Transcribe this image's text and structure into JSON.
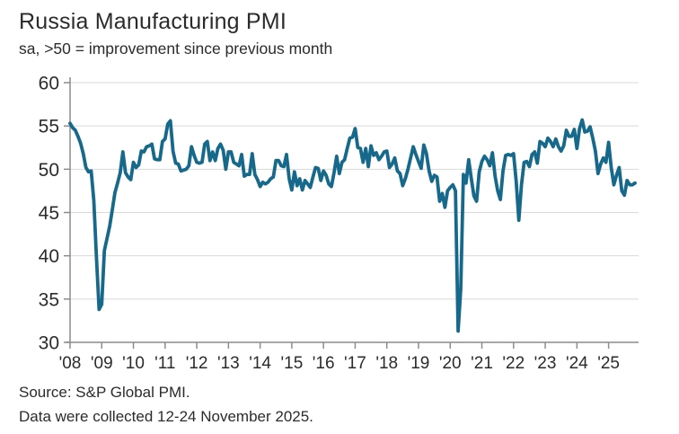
{
  "chart_data": {
    "type": "line",
    "title": "Russia Manufacturing PMI",
    "subtitle": "sa, >50 = improvement since previous month",
    "source": "Source: S&P Global PMI.",
    "note": "Data were collected 12-24 November 2025.",
    "frequency": "monthly",
    "x_start": "Jan 2008",
    "x_end": "Nov 2025",
    "ylim": [
      30,
      60
    ],
    "y_ticks": [
      30,
      35,
      40,
      45,
      50,
      55,
      60
    ],
    "x_tick_labels": [
      "'08",
      "'09",
      "'10",
      "'11",
      "'12",
      "'13",
      "'14",
      "'15",
      "'16",
      "'17",
      "'18",
      "'19",
      "'20",
      "'21",
      "'22",
      "'23",
      "'24",
      "'25"
    ],
    "grid": "horizontal",
    "legend": "none",
    "line_color": "#17698c",
    "grid_color": "#d9d9d9",
    "axis_color": "#8c8c8c",
    "text_color": "#2b2b2b",
    "series": [
      {
        "name": "Russia Manufacturing PMI (sa)",
        "values": [
          55.3,
          54.8,
          54.5,
          53.8,
          53.0,
          51.8,
          50.2,
          49.7,
          49.8,
          46.4,
          39.8,
          33.8,
          34.4,
          40.6,
          42.0,
          43.4,
          45.3,
          47.3,
          48.4,
          49.6,
          52.0,
          49.6,
          49.1,
          48.8,
          50.8,
          50.2,
          50.5,
          52.1,
          52.0,
          52.6,
          52.7,
          52.9,
          51.2,
          51.1,
          51.1,
          53.2,
          53.5,
          55.2,
          55.6,
          52.1,
          50.7,
          50.6,
          49.8,
          49.9,
          50.0,
          50.4,
          52.6,
          51.6,
          50.8,
          50.7,
          50.8,
          52.9,
          53.2,
          51.0,
          52.0,
          51.0,
          52.4,
          52.9,
          52.2,
          50.0,
          52.0,
          52.0,
          50.8,
          50.6,
          50.4,
          51.7,
          49.2,
          49.4,
          49.4,
          51.8,
          49.4,
          48.8,
          48.0,
          48.5,
          48.3,
          48.5,
          48.9,
          49.1,
          51.0,
          51.0,
          50.4,
          50.3,
          51.7,
          48.9,
          47.6,
          49.7,
          48.1,
          48.9,
          47.6,
          48.7,
          48.3,
          47.9,
          49.1,
          50.2,
          50.1,
          48.7,
          49.8,
          49.3,
          48.3,
          48.0,
          49.6,
          51.5,
          49.5,
          50.8,
          51.1,
          52.4,
          53.6,
          53.7,
          54.7,
          52.5,
          52.4,
          50.8,
          52.4,
          50.3,
          52.7,
          51.6,
          51.9,
          51.1,
          51.5,
          52.0,
          52.1,
          50.2,
          50.6,
          51.3,
          49.8,
          49.5,
          48.1,
          48.9,
          50.0,
          51.3,
          52.6,
          51.7,
          50.9,
          50.1,
          52.8,
          51.8,
          49.8,
          48.6,
          49.3,
          49.1,
          46.3,
          47.2,
          45.6,
          47.5,
          47.9,
          48.2,
          47.5,
          31.3,
          36.2,
          49.4,
          48.4,
          51.1,
          48.9,
          46.9,
          46.3,
          49.7,
          50.9,
          51.5,
          51.1,
          50.4,
          51.9,
          49.2,
          47.5,
          46.5,
          49.8,
          51.6,
          51.7,
          51.6,
          51.8,
          48.6,
          44.1,
          48.2,
          50.8,
          50.9,
          50.3,
          51.7,
          52.0,
          50.7,
          53.2,
          53.0,
          52.6,
          53.6,
          53.2,
          52.6,
          53.5,
          52.6,
          52.1,
          52.7,
          54.5,
          53.8,
          53.8,
          54.6,
          52.4,
          54.7,
          55.7,
          54.3,
          54.4,
          54.9,
          53.6,
          52.1,
          49.5,
          50.6,
          51.3,
          50.8,
          53.1,
          50.2,
          48.2,
          49.3,
          50.2,
          47.5,
          47.0,
          48.7,
          48.2,
          48.2,
          48.4
        ]
      }
    ]
  }
}
